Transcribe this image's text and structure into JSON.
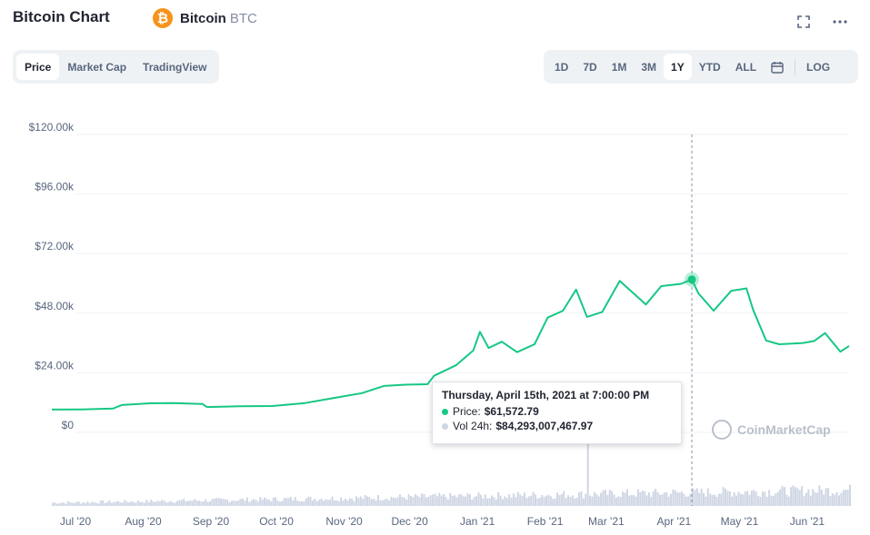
{
  "header": {
    "title": "Bitcoin Chart",
    "coin_letter": "₿",
    "coin_name": "Bitcoin",
    "coin_symbol": "BTC",
    "fullscreen_icon": "fullscreen-icon",
    "more_icon": "more-icon"
  },
  "tabs": [
    {
      "label": "Price",
      "active": true
    },
    {
      "label": "Market Cap",
      "active": false
    },
    {
      "label": "TradingView",
      "active": false
    }
  ],
  "ranges": [
    {
      "label": "1D",
      "active": false
    },
    {
      "label": "7D",
      "active": false
    },
    {
      "label": "1M",
      "active": false
    },
    {
      "label": "3M",
      "active": false
    },
    {
      "label": "1Y",
      "active": true
    },
    {
      "label": "YTD",
      "active": false
    },
    {
      "label": "ALL",
      "active": false
    }
  ],
  "log_label": "LOG",
  "tooltip": {
    "date": "Thursday, April 15th, 2021 at 7:00:00 PM",
    "price_label": "Price:",
    "price_value": "$61,572.79",
    "vol_label": "Vol 24h:",
    "vol_value": "$84,293,007,467.97"
  },
  "watermark": "CoinMarketCap",
  "colors": {
    "line": "#16c784",
    "volume": "#cfd6e4",
    "grid": "#eff2f5",
    "axis_text": "#58667e"
  },
  "chart_data": {
    "type": "line",
    "ytick_labels": [
      "$0",
      "$24.00k",
      "$48.00k",
      "$72.00k",
      "$96.00k",
      "$120.00k"
    ],
    "yticks": [
      0,
      24000,
      48000,
      72000,
      96000,
      120000
    ],
    "ylim": [
      0,
      120000
    ],
    "xtick_labels": [
      "Jul '20",
      "Aug '20",
      "Sep '20",
      "Oct '20",
      "Nov '20",
      "Dec '20",
      "Jan '21",
      "Feb '21",
      "Mar '21",
      "Apr '21",
      "May '21",
      "Jun '21"
    ],
    "xtick_dates": [
      "2020-07-01",
      "2020-08-01",
      "2020-09-01",
      "2020-10-01",
      "2020-11-01",
      "2020-12-01",
      "2021-01-01",
      "2021-02-01",
      "2021-03-01",
      "2021-04-01",
      "2021-05-01",
      "2021-06-01"
    ],
    "xlim": [
      "2020-06-26",
      "2021-06-26"
    ],
    "highlight": {
      "date": "2021-04-15",
      "price": 61572.79
    },
    "series": [
      {
        "values": [
          [
            "2020-06-26",
            9200
          ],
          [
            "2020-07-10",
            9250
          ],
          [
            "2020-07-24",
            9600
          ],
          [
            "2020-07-28",
            11000
          ],
          [
            "2020-08-10",
            11700
          ],
          [
            "2020-08-20",
            11800
          ],
          [
            "2020-09-03",
            11400
          ],
          [
            "2020-09-05",
            10200
          ],
          [
            "2020-09-20",
            10500
          ],
          [
            "2020-10-05",
            10600
          ],
          [
            "2020-10-20",
            11800
          ],
          [
            "2020-11-01",
            13700
          ],
          [
            "2020-11-15",
            15800
          ],
          [
            "2020-11-25",
            18700
          ],
          [
            "2020-12-05",
            19200
          ],
          [
            "2020-12-15",
            19400
          ],
          [
            "2020-12-18",
            22800
          ],
          [
            "2020-12-28",
            27000
          ],
          [
            "2021-01-05",
            33000
          ],
          [
            "2021-01-08",
            40500
          ],
          [
            "2021-01-12",
            34000
          ],
          [
            "2021-01-18",
            36500
          ],
          [
            "2021-01-25",
            32300
          ],
          [
            "2021-02-02",
            35500
          ],
          [
            "2021-02-08",
            46200
          ],
          [
            "2021-02-15",
            49000
          ],
          [
            "2021-02-21",
            57500
          ],
          [
            "2021-02-26",
            46500
          ],
          [
            "2021-03-05",
            48500
          ],
          [
            "2021-03-13",
            61000
          ],
          [
            "2021-03-25",
            51500
          ],
          [
            "2021-04-01",
            58900
          ],
          [
            "2021-04-10",
            59800
          ],
          [
            "2021-04-15",
            61572.79
          ],
          [
            "2021-04-18",
            56000
          ],
          [
            "2021-04-25",
            49000
          ],
          [
            "2021-05-03",
            57000
          ],
          [
            "2021-05-10",
            58000
          ],
          [
            "2021-05-13",
            49500
          ],
          [
            "2021-05-19",
            37000
          ],
          [
            "2021-05-25",
            35500
          ],
          [
            "2021-06-05",
            36000
          ],
          [
            "2021-06-10",
            36800
          ],
          [
            "2021-06-15",
            40000
          ],
          [
            "2021-06-22",
            32500
          ],
          [
            "2021-06-26",
            34800
          ]
        ]
      }
    ],
    "volume_peak": {
      "date": "2021-02-26",
      "value": 350000000000
    }
  }
}
